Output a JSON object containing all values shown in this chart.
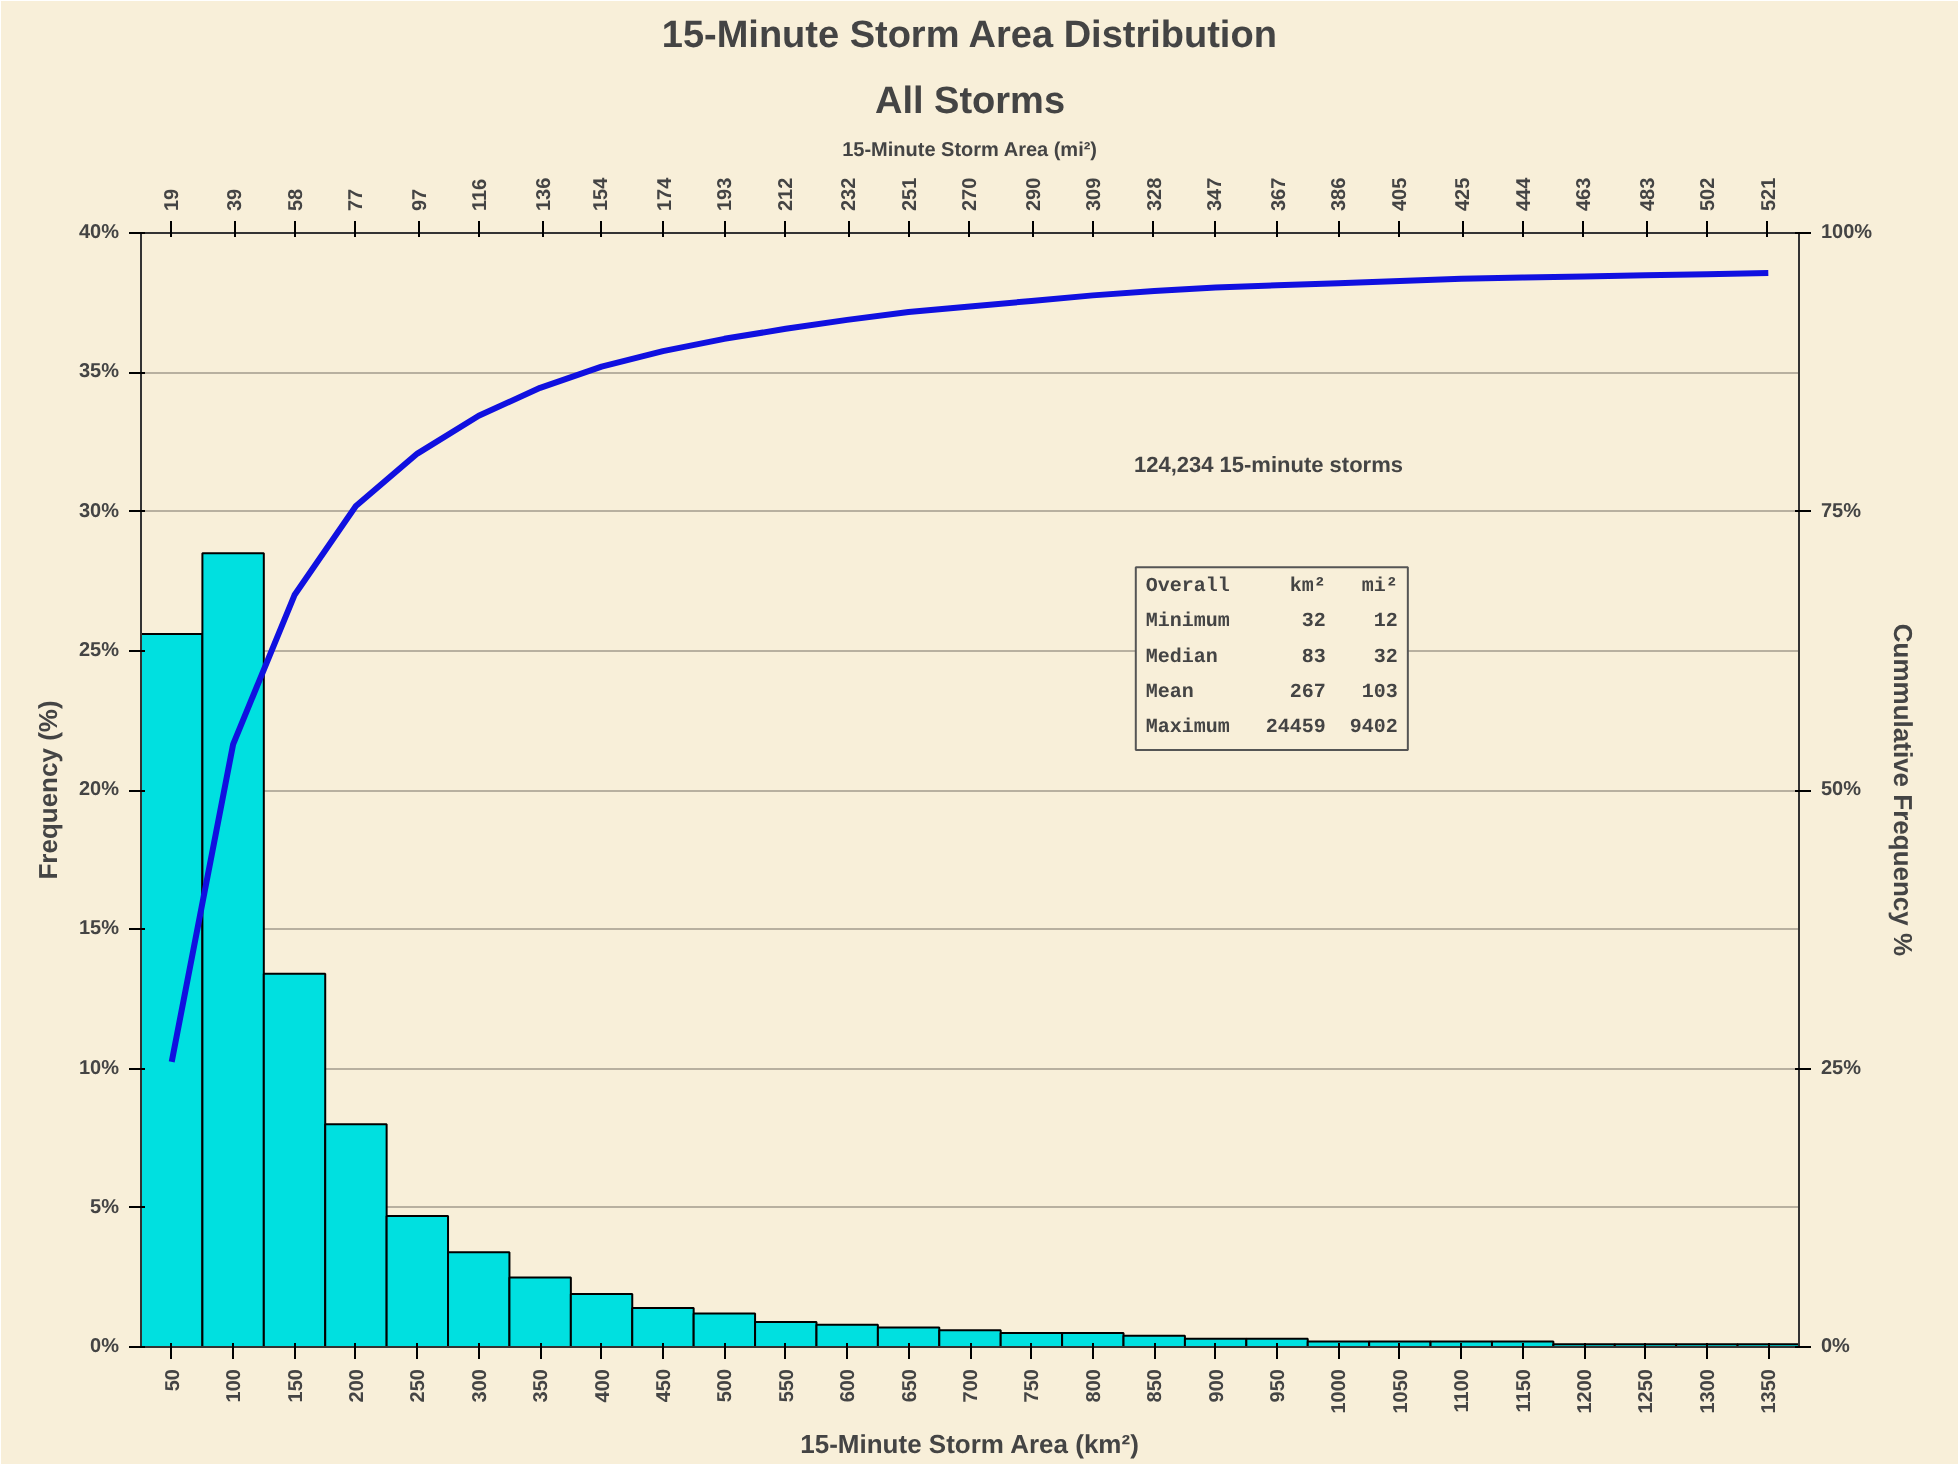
{
  "chart_data": {
    "type": "bar",
    "title": "15-Minute Storm Area Distribution",
    "subtitle": "All Storms",
    "xlabel": "15-Minute Storm Area (km²)",
    "x2label": "15-Minute Storm Area (mi²)",
    "ylabel": "Frequency (%)",
    "y2label": "Cummulative Frequency %",
    "x": [
      50,
      100,
      150,
      200,
      250,
      300,
      350,
      400,
      450,
      500,
      550,
      600,
      650,
      700,
      750,
      800,
      850,
      900,
      950,
      1000,
      1050,
      1100,
      1150,
      1200,
      1250,
      1300,
      1350
    ],
    "xlim": [
      25,
      1375
    ],
    "xticks": [
      50,
      100,
      150,
      200,
      250,
      300,
      350,
      400,
      450,
      500,
      550,
      600,
      650,
      700,
      750,
      800,
      850,
      900,
      950,
      1000,
      1050,
      1100,
      1150,
      1200,
      1250,
      1300,
      1350
    ],
    "x2lim": [
      9.65,
      530.9
    ],
    "x2ticks": [
      19,
      39,
      58,
      77,
      97,
      116,
      136,
      154,
      174,
      193,
      212,
      232,
      251,
      270,
      290,
      309,
      328,
      347,
      367,
      386,
      405,
      425,
      444,
      463,
      483,
      502,
      521
    ],
    "ylim": [
      0,
      40
    ],
    "yticks": [
      {
        "value": 0,
        "label": "0%"
      },
      {
        "value": 5,
        "label": "5%"
      },
      {
        "value": 10,
        "label": "10%"
      },
      {
        "value": 15,
        "label": "15%"
      },
      {
        "value": 20,
        "label": "20%"
      },
      {
        "value": 25,
        "label": "25%"
      },
      {
        "value": 30,
        "label": "30%"
      },
      {
        "value": 35,
        "label": "35%"
      },
      {
        "value": 40,
        "label": "40%"
      }
    ],
    "y2lim": [
      0,
      100
    ],
    "y2ticks": [
      {
        "value": 0,
        "label": "0%"
      },
      {
        "value": 25,
        "label": "25%"
      },
      {
        "value": 50,
        "label": "50%"
      },
      {
        "value": 75,
        "label": "75%"
      },
      {
        "value": 100,
        "label": "100%"
      }
    ],
    "series": [
      {
        "color": "#00e0e0",
        "values": [
          25.6,
          28.5,
          13.4,
          8.0,
          4.7,
          3.4,
          2.5,
          1.9,
          1.4,
          1.2,
          0.9,
          0.8,
          0.7,
          0.6,
          0.5,
          0.5,
          0.4,
          0.3,
          0.3,
          0.2,
          0.2,
          0.2,
          0.2,
          0.1,
          0.1,
          0.1,
          0.1
        ]
      },
      {
        "type": "line",
        "axis": "y2",
        "color": "#1010e0",
        "values": [
          25.6,
          54.1,
          67.5,
          75.5,
          80.2,
          83.6,
          86.1,
          88.0,
          89.4,
          90.5,
          91.4,
          92.2,
          92.9,
          93.4,
          93.9,
          94.4,
          94.8,
          95.1,
          95.3,
          95.5,
          95.7,
          95.9,
          96.0,
          96.1,
          96.2,
          96.3,
          96.4
        ]
      }
    ],
    "annotations": [
      "124,234 15-minute storms",
      "Overall     km²   mi²\nMinimum      32    12\nMedian       83    32\nMean        267   103\nMaximum   24459  9402"
    ],
    "grid": "y",
    "marker": "none",
    "line_style": "solid"
  }
}
